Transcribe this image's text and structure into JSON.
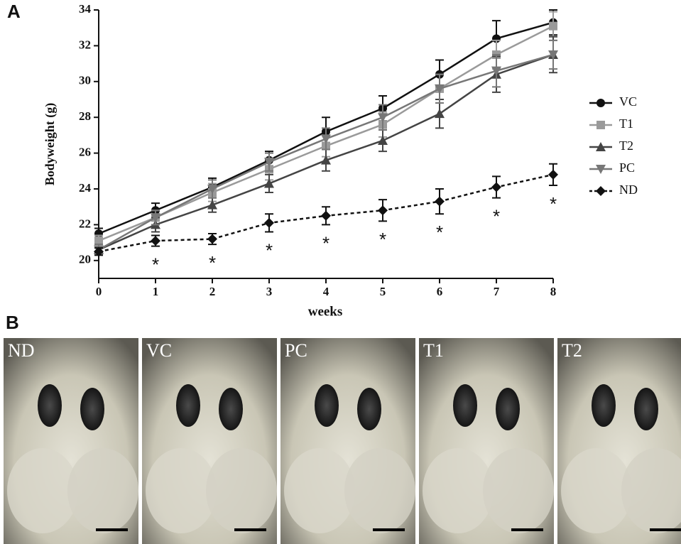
{
  "panel_a_label": "A",
  "panel_b_label": "B",
  "photos": [
    {
      "label": "ND"
    },
    {
      "label": "VC"
    },
    {
      "label": "PC"
    },
    {
      "label": "T1"
    },
    {
      "label": "T2"
    }
  ],
  "chart_data": {
    "type": "line",
    "x_label": "weeks",
    "y_label": "Bodyweight (g)",
    "x": [
      0,
      1,
      2,
      3,
      4,
      5,
      6,
      7,
      8
    ],
    "xlim": [
      0,
      8
    ],
    "xticks": [
      0,
      1,
      2,
      3,
      4,
      5,
      6,
      7,
      8
    ],
    "ylim": [
      19,
      34
    ],
    "yticks": [
      20,
      22,
      24,
      26,
      28,
      30,
      32,
      34
    ],
    "legend": "right",
    "series": [
      {
        "name": "VC",
        "color": "#111111",
        "marker": "circle",
        "dashed": false,
        "values": [
          21.5,
          22.8,
          24.1,
          25.6,
          27.2,
          28.5,
          30.4,
          32.4,
          33.3
        ],
        "errors": [
          0.3,
          0.4,
          0.5,
          0.5,
          0.8,
          0.7,
          0.8,
          1.0,
          0.7
        ]
      },
      {
        "name": "T1",
        "color": "#9a9a9a",
        "marker": "square",
        "dashed": false,
        "values": [
          21.1,
          22.4,
          23.8,
          25.1,
          26.4,
          27.6,
          29.6,
          31.5,
          33.1
        ],
        "errors": [
          0.3,
          0.4,
          0.5,
          0.6,
          0.6,
          0.7,
          0.8,
          0.8,
          0.8
        ]
      },
      {
        "name": "T2",
        "color": "#444444",
        "marker": "triangle-up",
        "dashed": false,
        "values": [
          20.6,
          22.0,
          23.1,
          24.3,
          25.6,
          26.7,
          28.2,
          30.4,
          31.5
        ],
        "errors": [
          0.3,
          0.4,
          0.4,
          0.5,
          0.6,
          0.6,
          0.8,
          1.0,
          1.0
        ]
      },
      {
        "name": "PC",
        "color": "#777777",
        "marker": "triangle-down",
        "dashed": false,
        "values": [
          20.6,
          22.4,
          24.0,
          25.5,
          26.8,
          28.0,
          29.6,
          30.6,
          31.5
        ],
        "errors": [
          0.3,
          0.4,
          0.5,
          0.5,
          0.6,
          0.7,
          0.8,
          0.9,
          0.8
        ]
      },
      {
        "name": "ND",
        "color": "#111111",
        "marker": "diamond",
        "dashed": true,
        "values": [
          20.5,
          21.1,
          21.2,
          22.1,
          22.5,
          22.8,
          23.3,
          24.1,
          24.8
        ],
        "errors": [
          0.2,
          0.3,
          0.3,
          0.5,
          0.5,
          0.6,
          0.7,
          0.6,
          0.6
        ]
      }
    ],
    "annotations": [
      {
        "text": "*",
        "x": 1
      },
      {
        "text": "*",
        "x": 2
      },
      {
        "text": "*",
        "x": 3
      },
      {
        "text": "*",
        "x": 4
      },
      {
        "text": "*",
        "x": 5
      },
      {
        "text": "*",
        "x": 6
      },
      {
        "text": "*",
        "x": 7
      },
      {
        "text": "*",
        "x": 8
      }
    ]
  }
}
